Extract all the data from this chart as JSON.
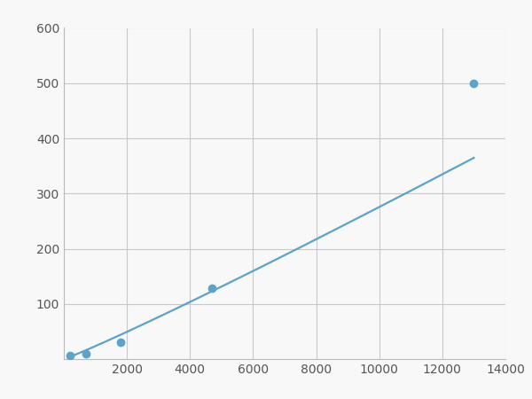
{
  "x_data": [
    200,
    700,
    1800,
    4700,
    13000
  ],
  "y_data": [
    7,
    10,
    30,
    128,
    500
  ],
  "line_color": "#5ba3c9",
  "marker_color": "#5ba3c9",
  "marker_size": 6,
  "line_width": 1.6,
  "xlim": [
    0,
    14000
  ],
  "ylim": [
    0,
    600
  ],
  "xticks": [
    0,
    2000,
    4000,
    6000,
    8000,
    10000,
    12000,
    14000
  ],
  "yticks": [
    0,
    100,
    200,
    300,
    400,
    500,
    600
  ],
  "grid_color": "#c8c8c8",
  "background_color": "#f8f8f8",
  "figure_bg": "#f8f8f8"
}
